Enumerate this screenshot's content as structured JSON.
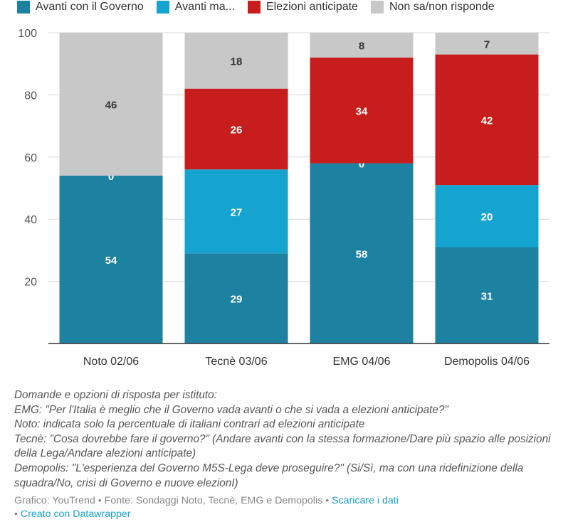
{
  "legend": [
    {
      "label": "Avanti con il Governo",
      "color": "#1d81a2"
    },
    {
      "label": "Avanti ma...",
      "color": "#15a4d0"
    },
    {
      "label": "Elezioni anticipate",
      "color": "#c71e1d"
    },
    {
      "label": "Non sa/non risponde",
      "color": "#c8c8c8"
    }
  ],
  "chart_data": {
    "type": "bar",
    "stacked": true,
    "categories": [
      "Noto 02/06",
      "Tecnè 03/06",
      "EMG 04/06",
      "Demopolis 04/06"
    ],
    "series": [
      {
        "name": "Avanti con il Governo",
        "color": "#1d81a2",
        "values": [
          54,
          29,
          58,
          31
        ]
      },
      {
        "name": "Avanti ma...",
        "color": "#15a4d0",
        "values": [
          0,
          27,
          0,
          20
        ]
      },
      {
        "name": "Elezioni anticipate",
        "color": "#c71e1d",
        "values": [
          0,
          26,
          34,
          42
        ]
      },
      {
        "name": "Non sa/non risponde",
        "color": "#c8c8c8",
        "values": [
          46,
          18,
          8,
          7
        ]
      }
    ],
    "ylim": [
      0,
      100
    ],
    "yticks": [
      20,
      40,
      60,
      80,
      100
    ],
    "grid": true
  },
  "notes": [
    "Domande e opzioni di risposta per istituto:",
    "EMG: \"Per l'Italia è meglio che il Governo vada avanti o che si vada a elezioni anticipate?\"",
    "Noto: indicata solo la percentuale di italiani contrari ad elezioni anticipate",
    "Tecnè: \"Cosa dovrebbe fare il governo?\" (Andare avanti con la stessa formazione/Dare più spazio alle posizioni della Lega/Andare alezioni anticipate)",
    "Demopolis: \"L'esperienza del Governo M5S-Lega deve proseguire?\" (Si/Sì, ma con una ridefinizione della squadra/No, crisi di Governo e nuove elezionI)"
  ],
  "footer": {
    "credit": "Grafico: YouTrend • Fonte: Sondaggi Noto, Tecnè, EMG e Demopolis • ",
    "download_link": "Scaricare i dati",
    "separator": "• ",
    "made_with_link": "Creato con Datawrapper"
  }
}
